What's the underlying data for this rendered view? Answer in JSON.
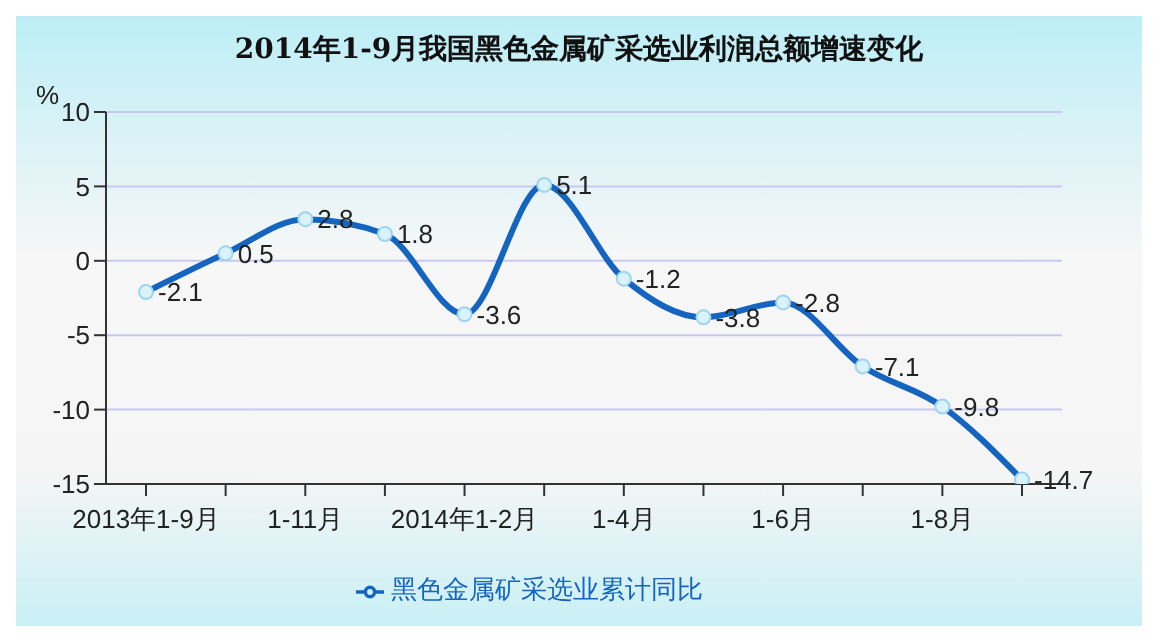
{
  "chart_data": {
    "type": "line",
    "title": "2014年1-9月我国黑色金属矿采选业利润总额增速变化",
    "ylabel": "%",
    "categories": [
      "2013年1-9月",
      null,
      "1-11月",
      null,
      "2014年1-2月",
      null,
      "1-4月",
      null,
      "1-6月",
      null,
      "1-8月",
      null
    ],
    "series": [
      {
        "name": "黑色金属矿采选业累计同比",
        "color": "#1565c0",
        "values": [
          -2.1,
          0.5,
          2.8,
          1.8,
          -3.6,
          5.1,
          -1.2,
          -3.8,
          -2.8,
          -7.1,
          -9.8,
          -14.7
        ]
      }
    ],
    "ylim": [
      -15,
      10
    ],
    "yticks": [
      -15,
      -10,
      -5,
      0,
      5,
      10
    ],
    "grid": "y",
    "legend": "bottom",
    "marker": "circle",
    "data_labels": true
  }
}
